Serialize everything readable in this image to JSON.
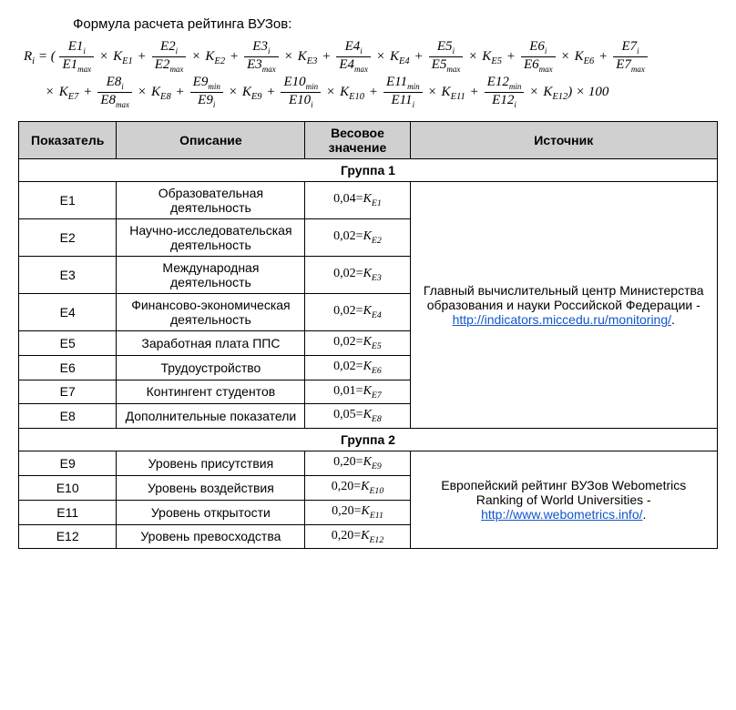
{
  "title": "Формула расчета рейтинга ВУЗов:",
  "formula": {
    "lhs": "R",
    "lhs_sub": "i",
    "tail": ") × 100",
    "terms": [
      {
        "num_base": "E1",
        "num_sub": "i",
        "den_base": "E1",
        "den_sub": "max",
        "k": "E1"
      },
      {
        "num_base": "E2",
        "num_sub": "i",
        "den_base": "E2",
        "den_sub": "max",
        "k": "E2"
      },
      {
        "num_base": "E3",
        "num_sub": "i",
        "den_base": "E3",
        "den_sub": "max",
        "k": "E3"
      },
      {
        "num_base": "E4",
        "num_sub": "i",
        "den_base": "E4",
        "den_sub": "max",
        "k": "E4"
      },
      {
        "num_base": "E5",
        "num_sub": "i",
        "den_base": "E5",
        "den_sub": "max",
        "k": "E5"
      },
      {
        "num_base": "E6",
        "num_sub": "i",
        "den_base": "E6",
        "den_sub": "max",
        "k": "E6"
      },
      {
        "num_base": "E7",
        "num_sub": "i",
        "den_base": "E7",
        "den_sub": "max",
        "k": "E7"
      },
      {
        "num_base": "E8",
        "num_sub": "i",
        "den_base": "E8",
        "den_sub": "max",
        "k": "E8"
      },
      {
        "num_base": "E9",
        "num_sub": "min",
        "den_base": "E9",
        "den_sub": "i",
        "k": "E9"
      },
      {
        "num_base": "E10",
        "num_sub": "min",
        "den_base": "E10",
        "den_sub": "i",
        "k": "E10"
      },
      {
        "num_base": "E11",
        "num_sub": "min",
        "den_base": "E11",
        "den_sub": "i",
        "k": "E11"
      },
      {
        "num_base": "E12",
        "num_sub": "min",
        "den_base": "E12",
        "den_sub": "i",
        "k": "E12"
      }
    ]
  },
  "headers": {
    "indicator": "Показатель",
    "description": "Описание",
    "weight": "Весовое\nзначение",
    "source": "Источник"
  },
  "group1": {
    "title": "Группа 1",
    "source_text": "Главный вычислительный центр Министерства образования и науки Российской Федерации - ",
    "source_link": "http://indicators.miccedu.ru/monitoring/",
    "source_tail": ".",
    "rows": [
      {
        "id": "E1",
        "desc": "Образовательная деятельность",
        "w": "0,04",
        "k": "E1"
      },
      {
        "id": "E2",
        "desc": "Научно-исследовательская деятельность",
        "w": "0,02",
        "k": "E2"
      },
      {
        "id": "E3",
        "desc": "Международная деятельность",
        "w": "0,02",
        "k": "E3"
      },
      {
        "id": "E4",
        "desc": "Финансово-экономическая деятельность",
        "w": "0,02",
        "k": "E4"
      },
      {
        "id": "E5",
        "desc": "Заработная плата ППС",
        "w": "0,02",
        "k": "E5"
      },
      {
        "id": "E6",
        "desc": "Трудоустройство",
        "w": "0,02",
        "k": "E6"
      },
      {
        "id": "E7",
        "desc": "Контингент студентов",
        "w": "0,01",
        "k": "E7"
      },
      {
        "id": "E8",
        "desc": "Дополнительные показатели",
        "w": "0,05",
        "k": "E8"
      }
    ]
  },
  "group2": {
    "title": "Группа 2",
    "source_text": "Европейский рейтинг ВУЗов Webometrics Ranking of World Universities - ",
    "source_link": "http://www.webometrics.info/",
    "source_tail": ".",
    "rows": [
      {
        "id": "E9",
        "desc": "Уровень присутствия",
        "w": "0,20",
        "k": "E9"
      },
      {
        "id": "E10",
        "desc": "Уровень воздействия",
        "w": "0,20",
        "k": "E10"
      },
      {
        "id": "E11",
        "desc": "Уровень открытости",
        "w": "0,20",
        "k": "E11"
      },
      {
        "id": "E12",
        "desc": "Уровень превосходства",
        "w": "0,20",
        "k": "E12"
      }
    ]
  },
  "style": {
    "header_bg": "#d0d0d0",
    "text_color": "#000000",
    "link_color": "#1155cc",
    "border_color": "#000000",
    "body_fontsize": 14,
    "col_widths_pct": [
      14,
      27,
      15,
      44
    ]
  }
}
